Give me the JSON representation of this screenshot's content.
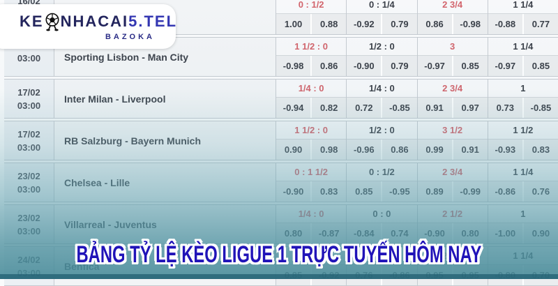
{
  "logo": {
    "wordmark_left": "KE",
    "wordmark_right": "NHACAI",
    "wordmark_domain": "5.TEL",
    "subtitle": "BAZOKA",
    "ball_icon": "soccer-ball-mascot-icon",
    "navy": "#23255d",
    "blue": "#3437b2"
  },
  "banner": {
    "text": "BẢNG TỶ LỆ KÈO LIGUE 1 TRỰC TUYẾN HÔM NAY",
    "color": "#2013b8"
  },
  "colors": {
    "handicap_red": "#d2646c",
    "text_dark": "#3a3f48",
    "overlay_teal": "#4f93a3",
    "bottom_strip": "#225f71"
  },
  "table": {
    "groups": [
      {
        "date": "16/02",
        "time": "",
        "match": "",
        "handicaps": [
          {
            "label": "0 : 1/2",
            "red": true
          },
          {
            "label": "0 : 1/4",
            "red": false
          },
          {
            "label": "2 3/4",
            "red": true
          },
          {
            "label": "1 1/4",
            "red": false
          }
        ],
        "odds": [
          "1.00",
          "0.88",
          "-0.92",
          "0.79",
          "0.86",
          "-0.98",
          "-0.88",
          "0.77"
        ]
      },
      {
        "date": "",
        "time": "03:00",
        "match": "Sporting Lisbon - Man City",
        "handicaps": [
          {
            "label": "1 1/2 : 0",
            "red": true
          },
          {
            "label": "1/2 : 0",
            "red": false
          },
          {
            "label": "3",
            "red": true
          },
          {
            "label": "1 1/4",
            "red": false
          }
        ],
        "odds": [
          "-0.98",
          "0.86",
          "-0.90",
          "0.79",
          "-0.97",
          "0.85",
          "-0.97",
          "0.85"
        ]
      },
      {
        "date": "17/02",
        "time": "03:00",
        "match": "Inter Milan - Liverpool",
        "handicaps": [
          {
            "label": "1/4 : 0",
            "red": true
          },
          {
            "label": "1/4 : 0",
            "red": false
          },
          {
            "label": "2 3/4",
            "red": true
          },
          {
            "label": "1",
            "red": false
          }
        ],
        "odds": [
          "-0.94",
          "0.82",
          "0.72",
          "-0.85",
          "0.91",
          "0.97",
          "0.73",
          "-0.85"
        ]
      },
      {
        "date": "17/02",
        "time": "03:00",
        "match": "RB Salzburg - Bayern Munich",
        "handicaps": [
          {
            "label": "1 1/2 : 0",
            "red": true
          },
          {
            "label": "1/2 : 0",
            "red": false
          },
          {
            "label": "3 1/2",
            "red": true
          },
          {
            "label": "1 1/2",
            "red": false
          }
        ],
        "odds": [
          "0.90",
          "0.98",
          "-0.96",
          "0.86",
          "0.99",
          "0.91",
          "-0.93",
          "0.83"
        ]
      },
      {
        "date": "23/02",
        "time": "03:00",
        "match": "Chelsea - Lille",
        "handicaps": [
          {
            "label": "0 : 1 1/2",
            "red": true
          },
          {
            "label": "0 : 1/2",
            "red": false
          },
          {
            "label": "2 3/4",
            "red": true
          },
          {
            "label": "1 1/4",
            "red": false
          }
        ],
        "odds": [
          "-0.90",
          "0.83",
          "0.85",
          "-0.95",
          "0.89",
          "-0.99",
          "-0.86",
          "0.76"
        ]
      },
      {
        "date": "23/02",
        "time": "03:00",
        "match": "Villarreal - Juventus",
        "handicaps": [
          {
            "label": "1/4 : 0",
            "red": true
          },
          {
            "label": "0 : 0",
            "red": false
          },
          {
            "label": "2 1/2",
            "red": true
          },
          {
            "label": "1",
            "red": false
          }
        ],
        "odds": [
          "0.80",
          "-0.87",
          "-0.84",
          "0.74",
          "-0.90",
          "0.80",
          "-1.00",
          "0.90"
        ]
      },
      {
        "date": "24/02",
        "time": "03:00",
        "match": "Benfica",
        "handicaps": [
          {
            "label": "",
            "red": true
          },
          {
            "label": "",
            "red": false
          },
          {
            "label": "2 3/4",
            "red": true
          },
          {
            "label": "1 1/4",
            "red": false
          }
        ],
        "odds": [
          "0.85",
          "-0.92",
          "0.76",
          "-0.86",
          "0.95",
          "0.95",
          "-0.80",
          "0.70"
        ]
      }
    ]
  }
}
